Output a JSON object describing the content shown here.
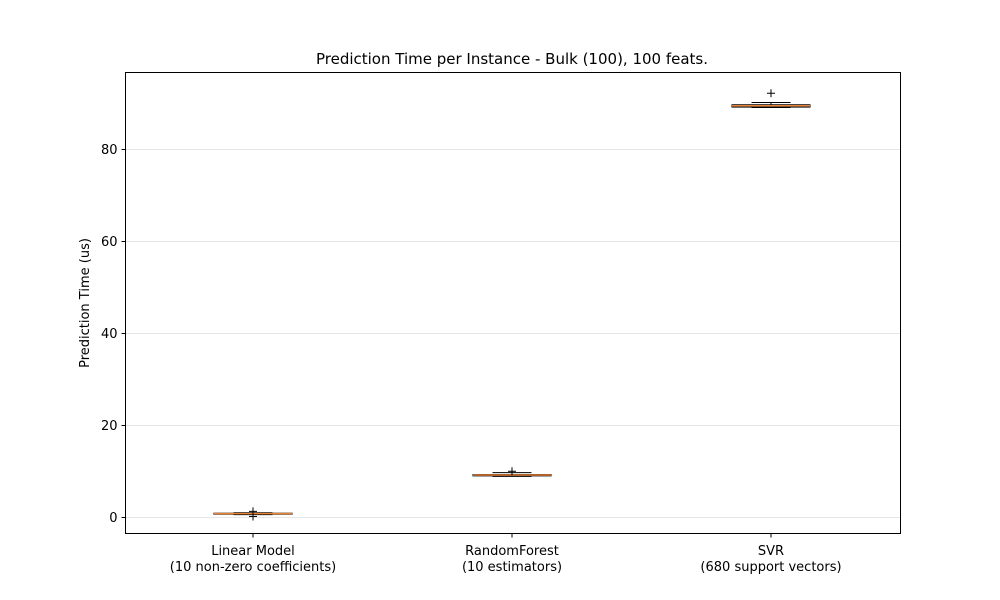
{
  "chart_data": {
    "type": "box",
    "title": "Prediction Time per Instance - Bulk (100), 100 feats.",
    "xlabel": "",
    "ylabel": "Prediction Time (us)",
    "ylim": [
      -3.5,
      96.5
    ],
    "yticks": [
      0,
      20,
      40,
      60,
      80
    ],
    "grid": "horizontal",
    "categories": [
      [
        "Linear Model",
        "(10 non-zero coefficients)"
      ],
      [
        "RandomForest",
        "(10 estimators)"
      ],
      [
        "SVR",
        "(680 support vectors)"
      ]
    ],
    "boxes": [
      {
        "q1": 0.7,
        "median": 0.8,
        "q3": 0.9,
        "whisker_low": 0.6,
        "whisker_high": 1.0,
        "outliers": [
          1.3,
          0.2
        ]
      },
      {
        "q1": 9.0,
        "median": 9.2,
        "q3": 9.3,
        "whisker_low": 8.9,
        "whisker_high": 9.7,
        "outliers": [
          10.0
        ]
      },
      {
        "q1": 89.0,
        "median": 89.3,
        "q3": 89.5,
        "whisker_low": 88.9,
        "whisker_high": 90.0,
        "outliers": [
          92.0
        ]
      }
    ],
    "colors": {
      "median": "#e8833a",
      "box_edge": "#000000",
      "grid": "#e6e6e6"
    }
  }
}
